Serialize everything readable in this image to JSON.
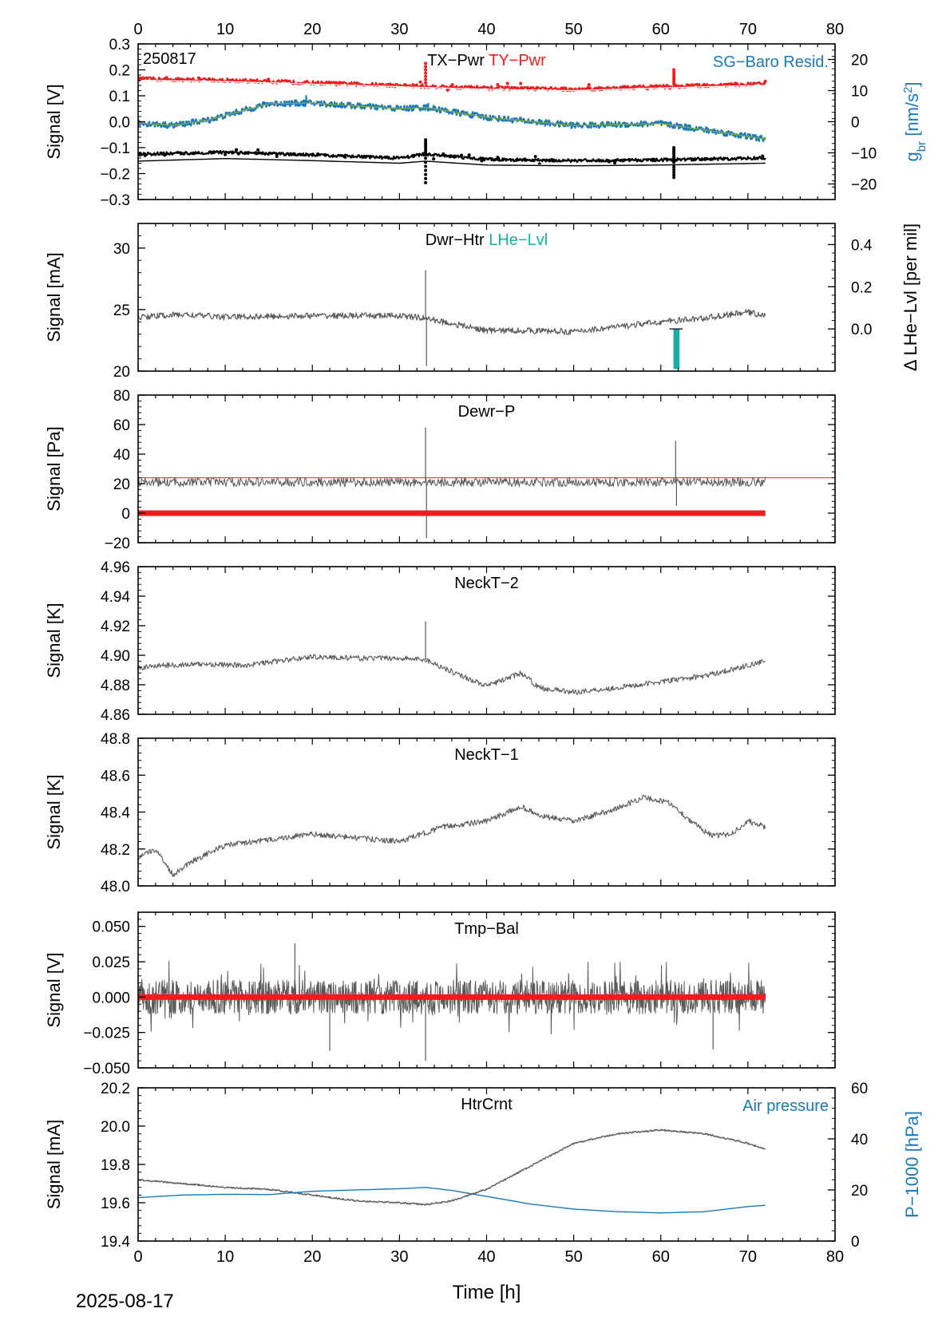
{
  "figure": {
    "date": "2025-08-17",
    "x_axis_label": "Time [h]",
    "x_ticks": [
      0,
      10,
      20,
      30,
      40,
      50,
      60,
      70,
      80
    ],
    "xlim": [
      0,
      80
    ]
  },
  "colors": {
    "grey": "#5a5a5a",
    "red": "#ee1c1c",
    "blue": "#1a7ab8",
    "teal": "#16b0a8",
    "olive": "#8aa840",
    "black": "#000000"
  },
  "chart_data": [
    {
      "id": "p1",
      "type": "line",
      "corner_text": "250817",
      "title_parts": [
        {
          "text": "TX−Pwr",
          "color": "black"
        },
        {
          "text": " TY−Pwr",
          "color": "red"
        }
      ],
      "right_title": "SG−Baro Resid.",
      "ylabel": "Signal [V]",
      "ylim": [
        -0.3,
        0.3
      ],
      "yticks": [
        -0.3,
        -0.2,
        -0.1,
        0.0,
        0.1,
        0.2,
        0.3
      ],
      "ytick_labels": [
        "−0.3",
        "−0.2",
        "−0.1",
        "0.0",
        "0.1",
        "0.2",
        "0.3"
      ],
      "y2label": "g_br [nm/s^2]",
      "y2lim": [
        -25,
        25
      ],
      "y2ticks": [
        -20,
        -10,
        0,
        10,
        20
      ],
      "y2tick_labels": [
        "−20",
        "−10",
        "0",
        "10",
        "20"
      ],
      "series": [
        {
          "name": "TY−Pwr",
          "color": "red",
          "width": 2.2,
          "x": [
            0,
            10,
            20,
            30,
            40,
            50,
            60,
            65,
            72
          ],
          "y": [
            0.165,
            0.16,
            0.15,
            0.14,
            0.13,
            0.125,
            0.135,
            0.14,
            0.145
          ],
          "noise": 0.008,
          "dots": true,
          "spikes": [
            [
              33,
              0.225
            ],
            [
              61.5,
              0.2
            ]
          ]
        },
        {
          "name": "TY−Pwr fit",
          "color": "white",
          "width": 1.2,
          "x": [
            0,
            10,
            20,
            30,
            40,
            50,
            60,
            65,
            72
          ],
          "y": [
            0.16,
            0.155,
            0.145,
            0.135,
            0.125,
            0.12,
            0.13,
            0.135,
            0.14
          ]
        },
        {
          "name": "SG−Baro Resid.",
          "color": "blue",
          "width": 2.2,
          "axis": "right",
          "x": [
            0,
            4,
            8,
            15,
            20,
            30,
            33,
            40,
            50,
            60,
            66,
            72
          ],
          "y": [
            -0.4,
            -1.2,
            0.5,
            5.8,
            6.0,
            4.2,
            4.6,
            1.4,
            -1.2,
            -0.6,
            -3.0,
            -5.6
          ],
          "noise": 1.0,
          "spikes": [
            [
              19.3,
              8.5
            ],
            [
              33.3,
              6.0
            ]
          ]
        },
        {
          "name": "SG fit",
          "color": "olive",
          "width": 1.3,
          "axis": "right",
          "x": [
            0,
            4,
            8,
            15,
            20,
            30,
            33,
            40,
            50,
            60,
            66,
            72
          ],
          "y": [
            -0.4,
            -1.2,
            0.5,
            5.8,
            6.0,
            4.2,
            4.6,
            1.4,
            -1.2,
            -0.6,
            -3.0,
            -5.6
          ]
        },
        {
          "name": "TX−Pwr",
          "color": "black",
          "width": 2.2,
          "x": [
            0,
            10,
            20,
            30,
            33,
            40,
            50,
            60,
            72
          ],
          "y": [
            -0.125,
            -0.118,
            -0.128,
            -0.14,
            -0.125,
            -0.145,
            -0.15,
            -0.147,
            -0.14
          ],
          "noise": 0.006,
          "dots": true,
          "spikes": [
            [
              33,
              -0.07
            ],
            [
              33,
              -0.235
            ],
            [
              61.5,
              -0.1
            ],
            [
              61.5,
              -0.215
            ]
          ]
        },
        {
          "name": "TX−Pwr fit",
          "color": "white",
          "width": 1.2,
          "x": [
            0,
            10,
            20,
            30,
            33,
            40,
            50,
            60,
            72
          ],
          "y": [
            -0.15,
            -0.14,
            -0.148,
            -0.158,
            -0.15,
            -0.165,
            -0.168,
            -0.165,
            -0.158
          ]
        },
        {
          "name": "TX−Pwr lower",
          "color": "black",
          "width": 1.4,
          "x": [
            0,
            10,
            20,
            30,
            33,
            40,
            50,
            60,
            72
          ],
          "y": [
            -0.152,
            -0.142,
            -0.15,
            -0.16,
            -0.152,
            -0.167,
            -0.17,
            -0.167,
            -0.16
          ]
        }
      ]
    },
    {
      "id": "p2",
      "type": "line",
      "title_parts": [
        {
          "text": "Dwr−Htr",
          "color": "black"
        },
        {
          "text": "  LHe−Lvl",
          "color": "teal"
        }
      ],
      "ylabel": "Signal [mA]",
      "ylim": [
        20,
        32
      ],
      "yticks": [
        20,
        25,
        30
      ],
      "ytick_labels": [
        "20",
        "25",
        "30"
      ],
      "y2label": "Δ LHe−Lvl [per mil]",
      "y2lim": [
        -0.2,
        0.5
      ],
      "y2ticks": [
        0.0,
        0.2,
        0.4
      ],
      "y2tick_labels": [
        "0.0",
        "0.2",
        "0.4"
      ],
      "series": [
        {
          "name": "Dwr−Htr",
          "color": "grey",
          "width": 1.2,
          "x": [
            0,
            5,
            10,
            20,
            30,
            33,
            35,
            40,
            45,
            50,
            55,
            60,
            65,
            70,
            72
          ],
          "y": [
            24.4,
            24.6,
            24.4,
            24.5,
            24.5,
            24.3,
            24.0,
            23.3,
            23.3,
            23.2,
            23.6,
            24.0,
            24.3,
            24.8,
            24.5
          ],
          "noise": 0.25,
          "spikes": [
            [
              33,
              28.2
            ],
            [
              33.1,
              20.4
            ]
          ]
        }
      ],
      "bars": [
        {
          "name": "LHe−Lvl",
          "color": "teal",
          "axis": "right",
          "x": 61.8,
          "y0": 0.0,
          "y1": -0.19,
          "width_h": 0.7
        }
      ],
      "hlines_right": [
        {
          "y": 0.0,
          "x0": 61,
          "x1": 62.5,
          "color": "black"
        }
      ]
    },
    {
      "id": "p3",
      "type": "line",
      "title_parts": [
        {
          "text": "Dewr−P",
          "color": "black"
        }
      ],
      "ylabel": "Signal [Pa]",
      "ylim": [
        -20,
        80
      ],
      "yticks": [
        -20,
        0,
        20,
        40,
        60,
        80
      ],
      "ytick_labels": [
        "−20",
        "0",
        "20",
        "40",
        "60",
        "80"
      ],
      "series": [
        {
          "name": "Dewr−P",
          "color": "grey",
          "width": 1.0,
          "x": [
            0,
            72
          ],
          "y": [
            21,
            21
          ],
          "noise": 3.0,
          "spikes": [
            [
              33,
              58
            ],
            [
              33.1,
              -17
            ],
            [
              61.7,
              49
            ],
            [
              61.8,
              5
            ]
          ]
        },
        {
          "name": "zero",
          "color": "red",
          "width": 7,
          "x": [
            0,
            72
          ],
          "y": [
            0,
            0
          ]
        }
      ],
      "hlines": [
        {
          "y": 24,
          "x0": 0,
          "x1": 80,
          "color": "red"
        }
      ]
    },
    {
      "id": "p4",
      "type": "line",
      "title_parts": [
        {
          "text": "NeckT−2",
          "color": "black"
        }
      ],
      "ylabel": "Signal [K]",
      "ylim": [
        4.86,
        4.96
      ],
      "yticks": [
        4.86,
        4.88,
        4.9,
        4.92,
        4.94,
        4.96
      ],
      "ytick_labels": [
        "4.86",
        "4.88",
        "4.90",
        "4.92",
        "4.94",
        "4.96"
      ],
      "series": [
        {
          "name": "NeckT−2",
          "color": "grey",
          "width": 1.1,
          "x": [
            0,
            2,
            8,
            12,
            20,
            25,
            30,
            33,
            36,
            40,
            44,
            46,
            50,
            55,
            60,
            65,
            70,
            72
          ],
          "y": [
            4.891,
            4.893,
            4.894,
            4.893,
            4.899,
            4.898,
            4.898,
            4.897,
            4.889,
            4.879,
            4.888,
            4.878,
            4.875,
            4.878,
            4.882,
            4.886,
            4.893,
            4.896
          ],
          "noise": 0.0018,
          "spikes": [
            [
              33,
              4.923
            ]
          ]
        }
      ]
    },
    {
      "id": "p5",
      "type": "line",
      "title_parts": [
        {
          "text": "NeckT−1",
          "color": "black"
        }
      ],
      "ylabel": "Signal [K]",
      "ylim": [
        48.0,
        48.8
      ],
      "yticks": [
        48.0,
        48.2,
        48.4,
        48.6,
        48.8
      ],
      "ytick_labels": [
        "48.0",
        "48.2",
        "48.4",
        "48.6",
        "48.8"
      ],
      "series": [
        {
          "name": "NeckT−1",
          "color": "grey",
          "width": 1.1,
          "x": [
            0,
            2,
            4,
            6,
            10,
            15,
            20,
            25,
            30,
            35,
            40,
            44,
            46,
            50,
            55,
            58,
            61,
            64,
            66,
            68,
            70,
            72
          ],
          "y": [
            48.15,
            48.2,
            48.06,
            48.13,
            48.22,
            48.25,
            48.28,
            48.26,
            48.24,
            48.32,
            48.35,
            48.43,
            48.38,
            48.35,
            48.42,
            48.48,
            48.45,
            48.33,
            48.27,
            48.28,
            48.35,
            48.32
          ],
          "noise": 0.015
        }
      ]
    },
    {
      "id": "p6",
      "type": "line",
      "title_parts": [
        {
          "text": "Tmp−Bal",
          "color": "black"
        }
      ],
      "ylabel": "Signal [V]",
      "ylim": [
        -0.05,
        0.06
      ],
      "yticks": [
        -0.05,
        -0.025,
        0.0,
        0.025,
        0.05
      ],
      "ytick_labels": [
        "−0.050",
        "−0.025",
        "0.000",
        "0.025",
        "0.050"
      ],
      "series": [
        {
          "name": "Tmp−Bal",
          "color": "grey",
          "width": 1.0,
          "x": [
            0,
            72
          ],
          "y": [
            0,
            0
          ],
          "noise": 0.012,
          "dense": 1400,
          "spikes": [
            [
              18,
              0.038
            ],
            [
              22,
              -0.038
            ],
            [
              33,
              -0.045
            ],
            [
              66,
              -0.037
            ],
            [
              2,
              -0.012
            ]
          ]
        },
        {
          "name": "zero",
          "color": "red",
          "width": 7,
          "x": [
            0,
            72
          ],
          "y": [
            0,
            0
          ]
        }
      ]
    },
    {
      "id": "p7",
      "type": "line",
      "title_parts": [
        {
          "text": "HtrCrnt",
          "color": "black"
        }
      ],
      "right_title": "Air pressure",
      "ylabel": "Signal [mA]",
      "ylim": [
        19.4,
        20.2
      ],
      "yticks": [
        19.4,
        19.6,
        19.8,
        20.0,
        20.2
      ],
      "ytick_labels": [
        "19.4",
        "19.6",
        "19.8",
        "20.0",
        "20.2"
      ],
      "y2label": "P−1000 [hPa]",
      "y2lim": [
        0,
        60
      ],
      "y2ticks": [
        0,
        20,
        40,
        60
      ],
      "y2tick_labels": [
        "0",
        "20",
        "40",
        "60"
      ],
      "series": [
        {
          "name": "HtrCrnt",
          "color": "grey",
          "width": 1.4,
          "x": [
            0,
            5,
            10,
            15,
            20,
            25,
            30,
            33,
            36,
            40,
            45,
            50,
            55,
            60,
            65,
            70,
            72
          ],
          "y": [
            19.72,
            19.7,
            19.68,
            19.67,
            19.64,
            19.61,
            19.6,
            19.59,
            19.61,
            19.67,
            19.79,
            19.91,
            19.96,
            19.98,
            19.96,
            19.91,
            19.88
          ],
          "noise": 0.004
        },
        {
          "name": "Air pressure",
          "color": "blue",
          "width": 1.4,
          "axis": "right",
          "x": [
            0,
            5,
            10,
            15,
            20,
            25,
            30,
            33,
            36,
            40,
            45,
            50,
            55,
            60,
            65,
            70,
            72
          ],
          "y": [
            17,
            18,
            18.3,
            18.2,
            19.5,
            20,
            20.5,
            21,
            19.8,
            17.5,
            14.5,
            12.5,
            11.5,
            11,
            11.5,
            13.5,
            14
          ]
        }
      ]
    }
  ]
}
